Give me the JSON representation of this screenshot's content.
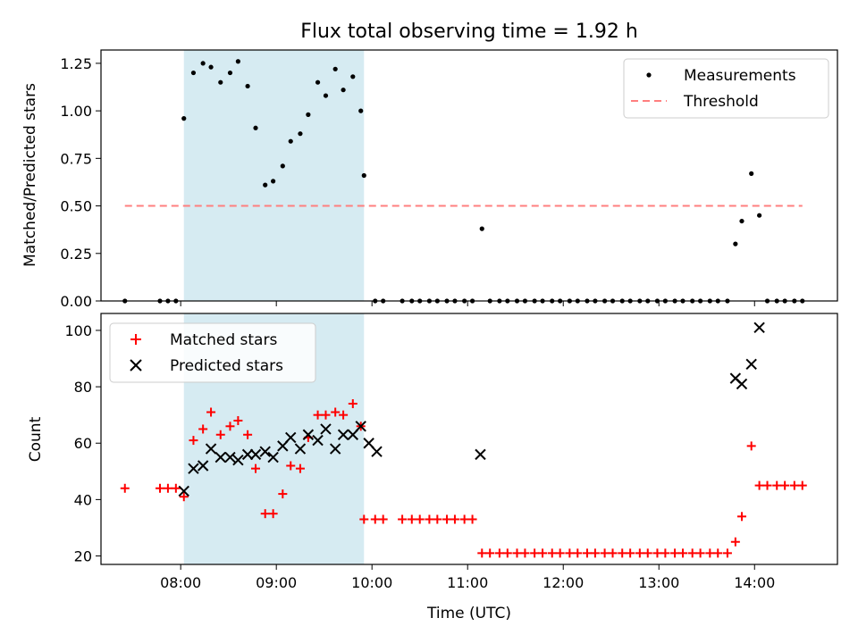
{
  "chart_data": [
    {
      "type": "scatter",
      "title": "Flux total observing time = 1.92 h",
      "xlabel": "",
      "ylabel": "Matched/Predicted stars",
      "xlim": [
        "07:10",
        "14:52"
      ],
      "ylim": [
        0,
        1.32
      ],
      "yticks": [
        "0.00",
        "0.25",
        "0.50",
        "0.75",
        "1.00",
        "1.25"
      ],
      "xticks": [
        "08:00",
        "09:00",
        "10:00",
        "11:00",
        "12:00",
        "13:00",
        "14:00"
      ],
      "shaded_span": [
        "08:02",
        "09:55"
      ],
      "legend": {
        "position": "top-right",
        "entries": [
          "Measurements",
          "Threshold"
        ]
      },
      "threshold": {
        "name": "Threshold",
        "value": 0.5,
        "x_range": [
          "07:25",
          "14:30"
        ],
        "color": "#ff7f7f"
      },
      "series": [
        {
          "name": "Measurements",
          "color": "#000000",
          "x": [
            "07:25",
            "07:47",
            "07:52",
            "07:57",
            "08:02",
            "08:08",
            "08:14",
            "08:19",
            "08:25",
            "08:31",
            "08:36",
            "08:42",
            "08:47",
            "08:53",
            "08:58",
            "09:04",
            "09:09",
            "09:15",
            "09:20",
            "09:26",
            "09:31",
            "09:37",
            "09:42",
            "09:48",
            "09:53",
            "09:55",
            "10:02",
            "10:07",
            "10:19",
            "10:25",
            "10:30",
            "10:36",
            "10:41",
            "10:47",
            "10:52",
            "10:58",
            "11:03",
            "11:09",
            "11:14",
            "11:20",
            "11:25",
            "11:31",
            "11:36",
            "11:42",
            "11:47",
            "11:53",
            "11:58",
            "12:04",
            "12:09",
            "12:15",
            "12:20",
            "12:26",
            "12:31",
            "12:37",
            "12:42",
            "12:48",
            "12:53",
            "12:59",
            "13:04",
            "13:10",
            "13:15",
            "13:21",
            "13:26",
            "13:32",
            "13:37",
            "13:43",
            "13:48",
            "13:52",
            "13:58",
            "14:03",
            "14:08",
            "14:14",
            "14:19",
            "14:25",
            "14:30"
          ],
          "values": [
            0,
            0,
            0,
            0,
            0.96,
            1.2,
            1.25,
            1.23,
            1.15,
            1.2,
            1.26,
            1.13,
            0.91,
            0.61,
            0.63,
            0.71,
            0.84,
            0.88,
            0.98,
            1.15,
            1.08,
            1.22,
            1.11,
            1.18,
            1.0,
            0.66,
            0,
            0,
            0,
            0,
            0,
            0,
            0,
            0,
            0,
            0,
            0,
            0.38,
            0,
            0,
            0,
            0,
            0,
            0,
            0,
            0,
            0,
            0,
            0,
            0,
            0,
            0,
            0,
            0,
            0,
            0,
            0,
            0,
            0,
            0,
            0,
            0,
            0,
            0,
            0,
            0,
            0.3,
            0.42,
            0.67,
            0.45,
            0,
            0,
            0,
            0,
            0
          ]
        }
      ]
    },
    {
      "type": "scatter",
      "title": "",
      "xlabel": "Time (UTC)",
      "ylabel": "Count",
      "xlim": [
        "07:10",
        "14:52"
      ],
      "ylim": [
        17,
        106
      ],
      "yticks": [
        "20",
        "40",
        "60",
        "80",
        "100"
      ],
      "xticks": [
        "08:00",
        "09:00",
        "10:00",
        "11:00",
        "12:00",
        "13:00",
        "14:00"
      ],
      "shaded_span": [
        "08:02",
        "09:55"
      ],
      "legend": {
        "position": "top-left",
        "entries": [
          "Matched stars",
          "Predicted stars"
        ]
      },
      "series": [
        {
          "name": "Matched stars",
          "marker": "plus",
          "color": "#ff0000",
          "x": [
            "07:25",
            "07:47",
            "07:52",
            "07:57",
            "08:02",
            "08:08",
            "08:14",
            "08:19",
            "08:25",
            "08:31",
            "08:36",
            "08:42",
            "08:47",
            "08:53",
            "08:58",
            "09:04",
            "09:09",
            "09:15",
            "09:20",
            "09:26",
            "09:31",
            "09:37",
            "09:42",
            "09:48",
            "09:53",
            "09:55",
            "10:02",
            "10:07",
            "10:19",
            "10:25",
            "10:30",
            "10:36",
            "10:41",
            "10:47",
            "10:52",
            "10:58",
            "11:03",
            "11:09",
            "11:14",
            "11:20",
            "11:25",
            "11:31",
            "11:36",
            "11:42",
            "11:47",
            "11:53",
            "11:58",
            "12:04",
            "12:09",
            "12:15",
            "12:20",
            "12:26",
            "12:31",
            "12:37",
            "12:42",
            "12:48",
            "12:53",
            "12:59",
            "13:04",
            "13:10",
            "13:15",
            "13:21",
            "13:26",
            "13:32",
            "13:37",
            "13:43",
            "13:48",
            "13:52",
            "13:58",
            "14:03",
            "14:08",
            "14:14",
            "14:19",
            "14:25",
            "14:30"
          ],
          "values": [
            44,
            44,
            44,
            44,
            41,
            61,
            65,
            71,
            63,
            66,
            68,
            63,
            51,
            35,
            35,
            42,
            52,
            51,
            62,
            70,
            70,
            71,
            70,
            74,
            66,
            33,
            33,
            33,
            33,
            33,
            33,
            33,
            33,
            33,
            33,
            33,
            33,
            21,
            21,
            21,
            21,
            21,
            21,
            21,
            21,
            21,
            21,
            21,
            21,
            21,
            21,
            21,
            21,
            21,
            21,
            21,
            21,
            21,
            21,
            21,
            21,
            21,
            21,
            21,
            21,
            21,
            25,
            34,
            59,
            45,
            45,
            45,
            45,
            45,
            45
          ]
        },
        {
          "name": "Predicted stars",
          "marker": "x",
          "color": "#000000",
          "x": [
            "08:02",
            "08:08",
            "08:14",
            "08:19",
            "08:25",
            "08:31",
            "08:36",
            "08:42",
            "08:47",
            "08:53",
            "08:58",
            "09:04",
            "09:09",
            "09:15",
            "09:20",
            "09:26",
            "09:31",
            "09:37",
            "09:42",
            "09:48",
            "09:53",
            "09:58",
            "10:03",
            "11:08",
            "13:48",
            "13:52",
            "13:58",
            "14:03"
          ],
          "values": [
            43,
            51,
            52,
            58,
            55,
            55,
            54,
            56,
            56,
            57,
            55,
            59,
            62,
            58,
            63,
            61,
            65,
            58,
            63,
            63,
            66,
            60,
            57,
            56,
            83,
            81,
            88,
            101
          ]
        }
      ]
    }
  ]
}
